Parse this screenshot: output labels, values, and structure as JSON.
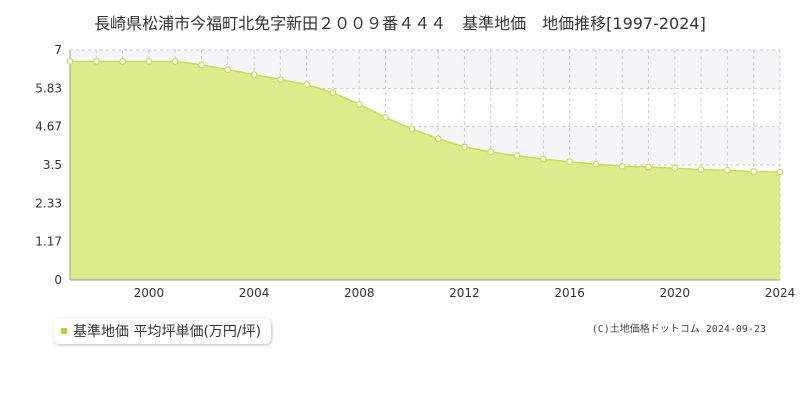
{
  "chart_data": {
    "type": "area",
    "title": "長崎県松浦市今福町北免字新田２００９番４４４　基準地価　地価推移[1997-2024]",
    "x": [
      1997,
      1998,
      1999,
      2000,
      2001,
      2002,
      2003,
      2004,
      2005,
      2006,
      2007,
      2008,
      2009,
      2010,
      2011,
      2012,
      2013,
      2014,
      2015,
      2016,
      2017,
      2018,
      2019,
      2020,
      2021,
      2022,
      2023,
      2024
    ],
    "series": [
      {
        "name": "基準地価 平均坪単価(万円/坪)",
        "values": [
          6.65,
          6.65,
          6.65,
          6.65,
          6.65,
          6.55,
          6.4,
          6.25,
          6.1,
          5.95,
          5.7,
          5.35,
          4.95,
          4.6,
          4.3,
          4.05,
          3.9,
          3.78,
          3.68,
          3.6,
          3.52,
          3.46,
          3.44,
          3.4,
          3.36,
          3.34,
          3.3,
          3.28
        ]
      }
    ],
    "xlim": [
      1997,
      2024
    ],
    "ylim": [
      0,
      7
    ],
    "yticks": [
      "0",
      "1.17",
      "2.33",
      "3.5",
      "4.67",
      "5.83",
      "7"
    ],
    "xticks": [
      "2000",
      "2004",
      "2008",
      "2012",
      "2016",
      "2020",
      "2024"
    ],
    "colors": {
      "fill": "#dcec8c",
      "line": "#c5dd5c",
      "marker_fill": "#ffffff",
      "grid": "#cccccc",
      "band": "#f5f5f7",
      "swatch": "#b4d339"
    },
    "grid": true,
    "legend": "bottom-left"
  },
  "credit": "(C)土地価格ドットコム 2024-09-23"
}
